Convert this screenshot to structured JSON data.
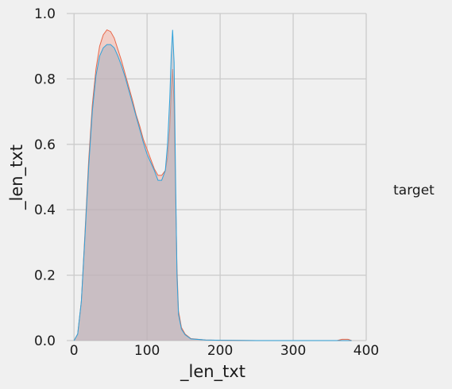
{
  "chart_data": {
    "type": "area",
    "kind": "kde",
    "xlabel": "_len_txt",
    "ylabel": "_len_txt",
    "xlim": [
      -10,
      400
    ],
    "ylim": [
      0,
      1.0
    ],
    "x_ticks": [
      0,
      100,
      200,
      300,
      400
    ],
    "y_ticks": [
      0.0,
      0.2,
      0.4,
      0.6,
      0.8,
      1.0
    ],
    "x_tick_labels": [
      "0",
      "100",
      "200",
      "300",
      "400"
    ],
    "y_tick_labels": [
      "0.0",
      "0.2",
      "0.4",
      "0.6",
      "0.8",
      "1.0"
    ],
    "grid": true,
    "legend": {
      "title": "target",
      "placement": "right"
    },
    "series": [
      {
        "color": "#e8684a",
        "fill_color": "#f2b3a6",
        "points": [
          [
            0,
            0
          ],
          [
            5,
            0.02
          ],
          [
            10,
            0.12
          ],
          [
            15,
            0.33
          ],
          [
            20,
            0.55
          ],
          [
            25,
            0.72
          ],
          [
            30,
            0.83
          ],
          [
            35,
            0.9
          ],
          [
            40,
            0.935
          ],
          [
            45,
            0.95
          ],
          [
            50,
            0.945
          ],
          [
            55,
            0.925
          ],
          [
            60,
            0.89
          ],
          [
            65,
            0.855
          ],
          [
            70,
            0.815
          ],
          [
            75,
            0.775
          ],
          [
            80,
            0.735
          ],
          [
            85,
            0.69
          ],
          [
            90,
            0.655
          ],
          [
            95,
            0.615
          ],
          [
            100,
            0.585
          ],
          [
            105,
            0.555
          ],
          [
            110,
            0.525
          ],
          [
            115,
            0.505
          ],
          [
            120,
            0.505
          ],
          [
            125,
            0.52
          ],
          [
            128,
            0.56
          ],
          [
            131,
            0.65
          ],
          [
            133,
            0.76
          ],
          [
            135,
            0.83
          ],
          [
            137,
            0.72
          ],
          [
            139,
            0.45
          ],
          [
            141,
            0.22
          ],
          [
            143,
            0.09
          ],
          [
            147,
            0.04
          ],
          [
            152,
            0.02
          ],
          [
            160,
            0.006
          ],
          [
            180,
            0.002
          ],
          [
            200,
            0.001
          ],
          [
            250,
            0
          ],
          [
            300,
            0
          ],
          [
            360,
            0
          ],
          [
            367,
            0.004
          ],
          [
            375,
            0.004
          ],
          [
            380,
            0
          ]
        ]
      },
      {
        "color": "#30a2da",
        "fill_color": "#a8b0c0",
        "points": [
          [
            0,
            0
          ],
          [
            5,
            0.02
          ],
          [
            10,
            0.12
          ],
          [
            15,
            0.32
          ],
          [
            20,
            0.53
          ],
          [
            25,
            0.7
          ],
          [
            30,
            0.81
          ],
          [
            35,
            0.87
          ],
          [
            40,
            0.895
          ],
          [
            45,
            0.905
          ],
          [
            50,
            0.905
          ],
          [
            55,
            0.895
          ],
          [
            60,
            0.87
          ],
          [
            65,
            0.84
          ],
          [
            70,
            0.805
          ],
          [
            75,
            0.765
          ],
          [
            80,
            0.725
          ],
          [
            85,
            0.685
          ],
          [
            90,
            0.645
          ],
          [
            95,
            0.605
          ],
          [
            100,
            0.57
          ],
          [
            105,
            0.545
          ],
          [
            110,
            0.52
          ],
          [
            115,
            0.49
          ],
          [
            120,
            0.49
          ],
          [
            125,
            0.52
          ],
          [
            128,
            0.6
          ],
          [
            131,
            0.74
          ],
          [
            133,
            0.87
          ],
          [
            135,
            0.95
          ],
          [
            137,
            0.85
          ],
          [
            139,
            0.5
          ],
          [
            141,
            0.2
          ],
          [
            143,
            0.08
          ],
          [
            147,
            0.035
          ],
          [
            152,
            0.018
          ],
          [
            160,
            0.005
          ],
          [
            180,
            0.002
          ],
          [
            200,
            0.001
          ],
          [
            250,
            0
          ],
          [
            300,
            0
          ],
          [
            360,
            0
          ],
          [
            380,
            0
          ]
        ]
      }
    ]
  }
}
